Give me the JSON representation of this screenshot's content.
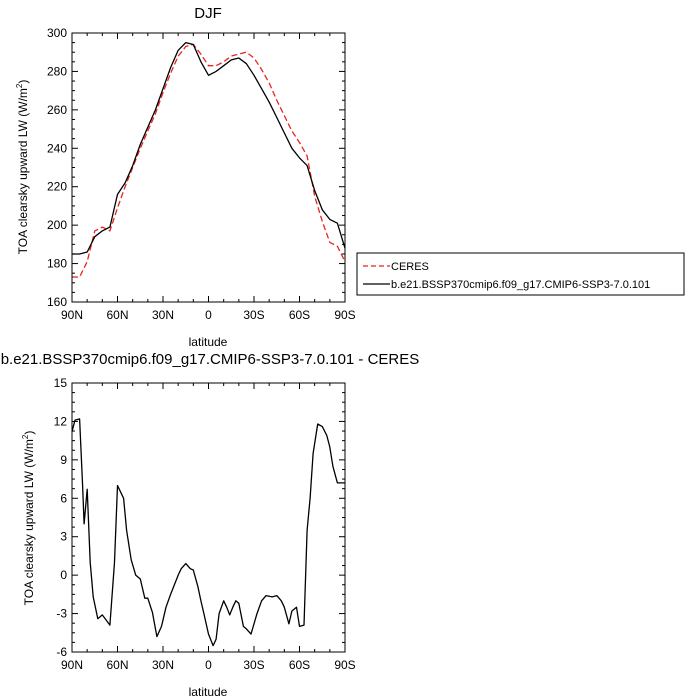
{
  "chart_data": [
    {
      "type": "line",
      "title": "DJF",
      "xlabel": "latitude",
      "ylabel": "TOA clearsky upward LW (W/m",
      "ylabel_sup": "2",
      "ylabel_close": ")",
      "xticks": [
        "90N",
        "60N",
        "30N",
        "0",
        "30S",
        "60S",
        "90S"
      ],
      "xlim": [
        90,
        -90
      ],
      "ylim": [
        160,
        300
      ],
      "yticks": [
        160,
        180,
        200,
        220,
        240,
        260,
        280,
        300
      ],
      "legend": "right",
      "series": [
        {
          "name": "CERES",
          "color": "#e8231f",
          "dash": true,
          "x": [
            90,
            85,
            80,
            75,
            70,
            65,
            60,
            55,
            50,
            45,
            40,
            35,
            30,
            25,
            20,
            15,
            10,
            5,
            0,
            -5,
            -10,
            -15,
            -20,
            -25,
            -30,
            -35,
            -40,
            -45,
            -50,
            -55,
            -60,
            -65,
            -70,
            -75,
            -80,
            -85,
            -90
          ],
          "values": [
            173,
            173,
            181,
            197,
            199,
            197,
            209,
            220,
            230,
            240,
            249,
            258,
            269,
            279,
            288,
            293,
            294,
            289,
            283,
            283,
            285,
            288,
            289,
            290,
            287,
            281,
            274,
            265,
            257,
            249,
            243,
            236,
            215,
            202,
            191,
            189,
            181
          ]
        },
        {
          "name": "b.e21.BSSP370cmip6.f09_g17.CMIP6-SSP3-7.0.101",
          "color": "#000000",
          "dash": false,
          "x": [
            90,
            85,
            80,
            75,
            70,
            65,
            60,
            55,
            50,
            45,
            40,
            35,
            30,
            25,
            20,
            15,
            10,
            5,
            0,
            -5,
            -10,
            -15,
            -20,
            -25,
            -30,
            -35,
            -40,
            -45,
            -50,
            -55,
            -60,
            -65,
            -70,
            -75,
            -80,
            -85,
            -90
          ],
          "values": [
            185,
            185,
            186,
            194,
            197,
            199,
            216,
            222,
            231,
            242,
            251,
            260,
            271,
            282,
            291,
            295,
            294,
            285,
            278,
            280,
            283,
            286,
            287,
            284,
            278,
            271,
            264,
            256,
            248,
            240,
            235,
            231,
            218,
            208,
            203,
            201,
            188
          ]
        }
      ]
    },
    {
      "type": "line",
      "title": "b.e21.BSSP370cmip6.f09_g17.CMIP6-SSP3-7.0.101 - CERES",
      "xlabel": "latitude",
      "ylabel": "TOA clearsky upward LW (W/m",
      "ylabel_sup": "2",
      "ylabel_close": ")",
      "xticks": [
        "90N",
        "60N",
        "30N",
        "0",
        "30S",
        "60S",
        "90S"
      ],
      "xlim": [
        90,
        -90
      ],
      "ylim": [
        -6,
        15
      ],
      "yticks": [
        -6,
        -3,
        0,
        3,
        6,
        9,
        12,
        15
      ],
      "series": [
        {
          "color": "#000000",
          "x": [
            90,
            88,
            85,
            83,
            82,
            80,
            78,
            76,
            73,
            70,
            65,
            62,
            60,
            56,
            54,
            51,
            48,
            45,
            42,
            40,
            37,
            34,
            31,
            28,
            25,
            20,
            18,
            15,
            12,
            10,
            7,
            5,
            3,
            0,
            -3,
            -5,
            -7,
            -10,
            -12,
            -14,
            -16,
            -18,
            -20,
            -23,
            -25,
            -28,
            -32,
            -35,
            -38,
            -42,
            -45,
            -48,
            -50,
            -53,
            -55,
            -58,
            -60,
            -63,
            -65,
            -67,
            -69,
            -72,
            -75,
            -78,
            -80,
            -82,
            -85,
            -88,
            -90
          ],
          "values": [
            11.2,
            12.1,
            12.2,
            7.0,
            4.0,
            6.7,
            1.0,
            -1.7,
            -3.4,
            -3.1,
            -3.9,
            1.0,
            7.0,
            6.0,
            3.5,
            1.2,
            0.0,
            -0.3,
            -1.8,
            -1.8,
            -2.9,
            -4.8,
            -4.0,
            -2.5,
            -1.5,
            0.0,
            0.5,
            0.9,
            0.5,
            0.4,
            -0.9,
            -2.0,
            -3.0,
            -4.6,
            -5.5,
            -5.0,
            -3.0,
            -2.0,
            -2.5,
            -3.1,
            -2.5,
            -2.0,
            -2.2,
            -4.0,
            -4.2,
            -4.6,
            -3.0,
            -2.0,
            -1.6,
            -1.7,
            -1.6,
            -2.0,
            -2.5,
            -3.8,
            -2.8,
            -2.5,
            -4.0,
            -3.9,
            3.5,
            6.0,
            9.5,
            11.8,
            11.6,
            10.9,
            10.0,
            8.5,
            7.2,
            7.2,
            7.2
          ]
        }
      ]
    }
  ]
}
